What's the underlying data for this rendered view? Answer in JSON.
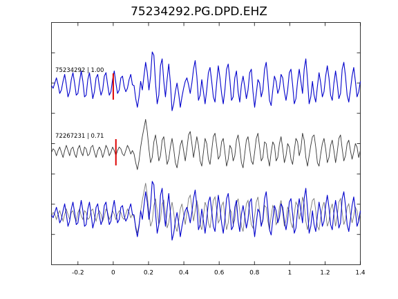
{
  "chart_data": {
    "type": "line",
    "title": "75234292.PG.DPD.EHZ",
    "xlabel": "",
    "ylabel": "",
    "xlim": [
      -0.35,
      1.4
    ],
    "x_ticks": [
      -0.2,
      0,
      0.2,
      0.4,
      0.6,
      0.8,
      1,
      1.2,
      1.4
    ],
    "x_tick_labels": [
      "-0.2",
      "0",
      "0.2",
      "0.4",
      "0.6",
      "0.8",
      "1",
      "1.2",
      "1.4"
    ],
    "y_ticks_count": 7,
    "grid": false,
    "pick_color": "#dd0000",
    "series": [
      {
        "label": "75234292 | 1.00",
        "color": "#0000cc",
        "row": 0,
        "pick_time": 0.0,
        "samples": [
          0.05,
          -0.1,
          0.2,
          0.5,
          0.1,
          -0.4,
          -0.2,
          0.3,
          0.7,
          0.1,
          -0.6,
          -0.3,
          0.4,
          0.8,
          0.2,
          -0.5,
          -0.4,
          0.3,
          0.9,
          0.3,
          -0.6,
          -0.5,
          0.4,
          0.8,
          0.1,
          -0.7,
          -0.3,
          0.5,
          0.7,
          0.0,
          -0.5,
          -0.2,
          0.6,
          0.8,
          0.1,
          -0.5,
          -0.3,
          0.4,
          0.9,
          0.2,
          -0.4,
          -0.2,
          0.5,
          0.6,
          0.0,
          -0.3,
          -0.1,
          0.4,
          0.7,
          0.1,
          0.05,
          -0.7,
          -1.2,
          -0.6,
          0.3,
          -0.2,
          0.6,
          1.4,
          0.8,
          -0.2,
          0.6,
          2.0,
          1.8,
          0.2,
          -1.0,
          -0.5,
          1.2,
          1.6,
          0.3,
          -0.6,
          0.4,
          1.3,
          0.2,
          -1.4,
          -1.0,
          -0.3,
          0.2,
          -0.4,
          -1.2,
          -0.6,
          -0.1,
          0.3,
          0.5,
          0.1,
          -0.4,
          0.2,
          1.0,
          1.5,
          0.6,
          -0.8,
          -0.5,
          0.4,
          -0.3,
          -1.0,
          -0.2,
          0.8,
          1.1,
          0.3,
          -0.6,
          -0.9,
          0.2,
          1.2,
          0.5,
          -0.4,
          -1.0,
          -0.2,
          1.0,
          1.3,
          0.4,
          -0.8,
          -0.6,
          0.5,
          0.9,
          -0.3,
          -0.9,
          0.1,
          0.6,
          0.0,
          -0.7,
          -0.2,
          0.8,
          1.0,
          -0.3,
          -1.2,
          -0.4,
          0.4,
          0.2,
          -0.6,
          -0.2,
          1.0,
          1.4,
          0.4,
          -0.8,
          -1.1,
          -0.2,
          0.6,
          0.3,
          -0.4,
          -0.1,
          0.7,
          0.5,
          -0.3,
          -0.8,
          -0.2,
          0.8,
          1.0,
          0.1,
          -1.0,
          -0.7,
          0.3,
          1.0,
          0.3,
          -0.4,
          1.0,
          1.6,
          0.4,
          -1.0,
          -0.6,
          0.3,
          -0.5,
          -0.9,
          0.0,
          0.8,
          0.2,
          -0.6,
          -0.3,
          0.6,
          1.2,
          0.5,
          -0.5,
          -0.8,
          0.2,
          0.9,
          0.2,
          -0.7,
          -0.4,
          1.0,
          1.4,
          0.6,
          -0.5,
          -0.9,
          -0.2,
          0.6,
          1.1,
          0.3,
          -0.6,
          -0.3,
          0.3
        ]
      },
      {
        "label": "72267231 | 0.71",
        "color": "#333333",
        "row": 1,
        "pick_time": 0.015,
        "samples": [
          0.0,
          0.2,
          0.1,
          -0.2,
          0.1,
          0.3,
          0.0,
          -0.3,
          0.1,
          0.4,
          0.1,
          -0.2,
          0.2,
          0.3,
          -0.1,
          -0.3,
          0.2,
          0.4,
          0.0,
          -0.2,
          0.3,
          0.2,
          -0.2,
          -0.1,
          0.3,
          0.4,
          0.0,
          -0.3,
          0.1,
          0.3,
          0.1,
          -0.3,
          0.0,
          0.4,
          0.2,
          -0.2,
          0.0,
          0.3,
          0.1,
          -0.2,
          0.1,
          0.3,
          0.2,
          -0.1,
          -0.2,
          0.1,
          0.4,
          0.2,
          -0.1,
          0.1,
          -0.1,
          -0.6,
          -1.0,
          -0.5,
          0.3,
          0.9,
          1.4,
          1.9,
          1.2,
          0.2,
          -0.6,
          -0.3,
          0.6,
          1.0,
          0.3,
          -0.5,
          -0.2,
          0.7,
          0.9,
          0.1,
          -0.7,
          -0.4,
          0.3,
          0.8,
          0.2,
          -0.6,
          -0.9,
          -0.3,
          0.4,
          0.7,
          0.1,
          -0.5,
          0.2,
          1.0,
          1.2,
          0.5,
          -0.3,
          0.3,
          0.9,
          0.4,
          -0.5,
          -0.8,
          0.0,
          0.8,
          0.5,
          -0.4,
          -0.7,
          0.1,
          0.9,
          1.1,
          0.4,
          -0.4,
          -0.2,
          0.6,
          0.8,
          0.0,
          -0.8,
          -0.4,
          0.4,
          0.2,
          -0.5,
          -0.2,
          0.7,
          1.0,
          0.3,
          -0.6,
          -0.9,
          -0.1,
          0.7,
          0.9,
          0.2,
          -0.5,
          -0.7,
          0.0,
          0.8,
          1.1,
          0.3,
          -0.5,
          -0.3,
          0.6,
          0.5,
          -0.3,
          -0.8,
          0.0,
          0.6,
          0.4,
          -0.5,
          -0.3,
          0.5,
          0.9,
          0.2,
          -0.6,
          -0.2,
          0.5,
          0.3,
          -0.4,
          -0.7,
          0.1,
          0.8,
          0.6,
          -0.2,
          0.2,
          1.1,
          0.7,
          -0.3,
          -0.8,
          -0.2,
          0.4,
          0.9,
          1.0,
          0.3,
          -0.6,
          -0.8,
          -0.1,
          0.5,
          0.8,
          0.2,
          -0.6,
          -0.3,
          0.4,
          0.7,
          0.1,
          -0.6,
          0.0,
          0.8,
          1.0,
          0.2,
          -0.5,
          -0.2,
          0.5,
          0.7,
          0.1,
          -0.4,
          0.0,
          0.5,
          0.3,
          -0.3,
          0.1
        ]
      }
    ]
  }
}
